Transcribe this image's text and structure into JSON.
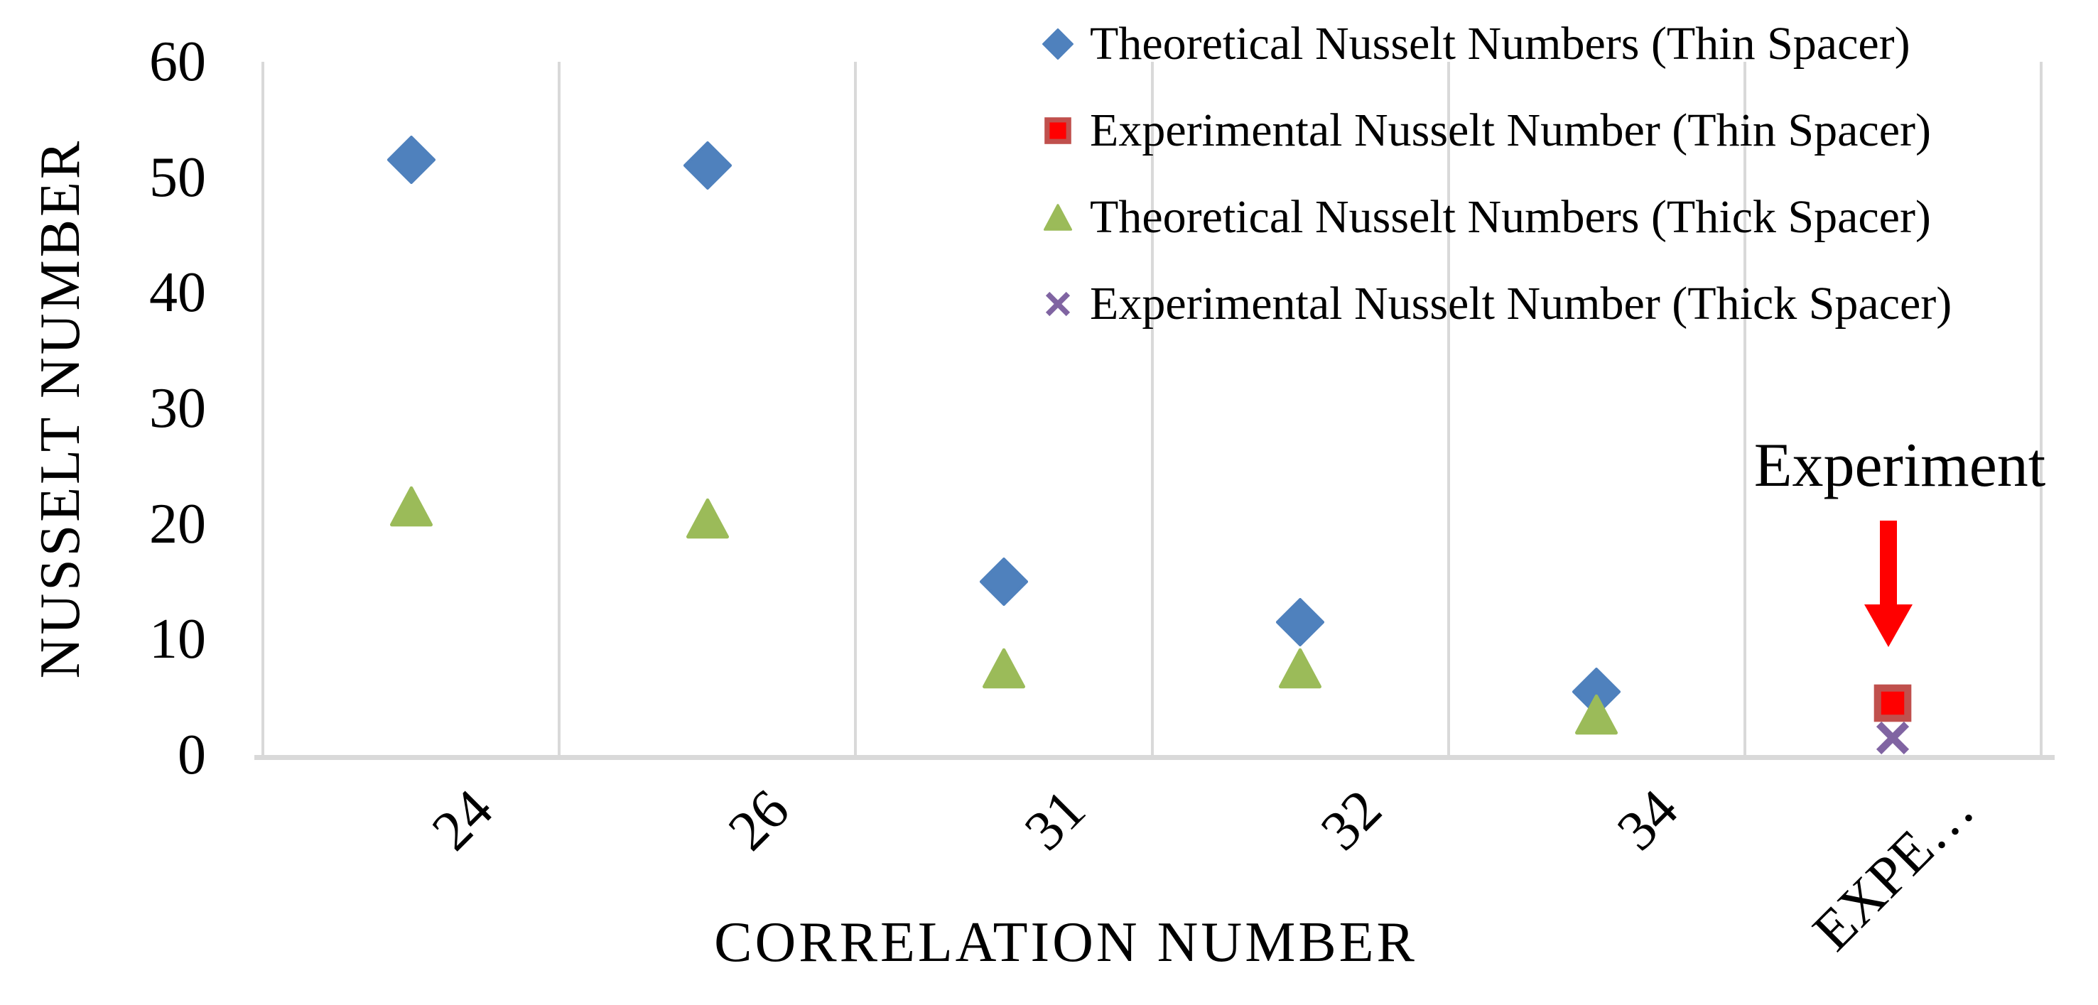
{
  "chart_data": {
    "type": "scatter",
    "title": "",
    "xlabel": "CORRELATION NUMBER",
    "ylabel": "NUSSELT NUMBER",
    "categories": [
      "24",
      "26",
      "31",
      "32",
      "34",
      "EXPE…"
    ],
    "ylim": [
      0,
      60
    ],
    "yticks": [
      0,
      10,
      20,
      30,
      40,
      50,
      60
    ],
    "grid": "vertical-only",
    "legend_position": "top-right",
    "series": [
      {
        "name": "Theoretical Nusselt Numbers (Thin Spacer)",
        "marker": "diamond",
        "color": "#4F81BD",
        "values": [
          51.5,
          51,
          15,
          11.5,
          5.5,
          null
        ]
      },
      {
        "name": "Experimental Nusselt Number (Thin Spacer)",
        "marker": "square",
        "color": "#FF0000",
        "border_color": "#C0504D",
        "values": [
          null,
          null,
          null,
          null,
          null,
          4.5
        ]
      },
      {
        "name": "Theoretical Nusselt Numbers (Thick Spacer)",
        "marker": "triangle",
        "color": "#9BBB59",
        "values": [
          21.5,
          20.5,
          7.5,
          7.5,
          3.5,
          null
        ]
      },
      {
        "name": "Experimental Nusselt Number (Thick Spacer)",
        "marker": "x",
        "color": "#8064A2",
        "values": [
          null,
          null,
          null,
          null,
          null,
          1.5
        ]
      }
    ],
    "annotation": {
      "label": "Experiment",
      "arrow_color": "#FF0000",
      "points_to_category": "EXPE…"
    }
  },
  "colors": {
    "gridline": "#D9D9D9",
    "text": "#000000",
    "background": "#FFFFFF"
  }
}
